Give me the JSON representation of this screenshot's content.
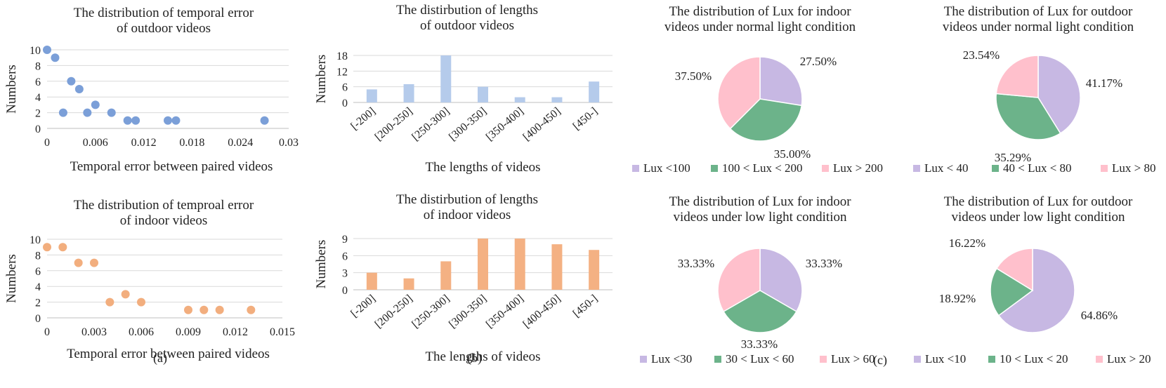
{
  "figure": {
    "captions": [
      "(a)",
      "(b)",
      "(c)"
    ]
  },
  "colors": {
    "scatter_outdoor": "#7b9fd8",
    "scatter_indoor": "#f2ae7e",
    "bar_outdoor": "#b5cbeb",
    "bar_indoor": "#f4b183",
    "pie": [
      "#c7b8e3",
      "#6cb38a",
      "#ffc0cc"
    ],
    "grid": "#d9d9d9",
    "axis": "#bfbfbf"
  },
  "chart_data": [
    {
      "id": "scatter-outdoor",
      "type": "scatter",
      "title": [
        "The distribution of temporal error",
        "of outdoor videos"
      ],
      "xlabel": "Temporal error between paired videos",
      "ylabel": "Numbers",
      "xlim": [
        0,
        0.03
      ],
      "ylim": [
        0,
        10
      ],
      "xticks": [
        "0",
        "0.006",
        "0.012",
        "0.018",
        "0.024",
        "0.03"
      ],
      "yticks": [
        "0",
        "2",
        "4",
        "6",
        "8",
        "10"
      ],
      "grid": true,
      "points": [
        [
          0,
          10
        ],
        [
          0.001,
          9
        ],
        [
          0.002,
          2
        ],
        [
          0.003,
          6
        ],
        [
          0.004,
          5
        ],
        [
          0.005,
          2
        ],
        [
          0.006,
          3
        ],
        [
          0.008,
          2
        ],
        [
          0.01,
          1
        ],
        [
          0.011,
          1
        ],
        [
          0.015,
          1
        ],
        [
          0.016,
          1
        ],
        [
          0.027,
          1
        ]
      ]
    },
    {
      "id": "scatter-indoor",
      "type": "scatter",
      "title": [
        "The distribution of temproal error",
        "of indoor videos"
      ],
      "xlabel": "Temporal error between paired videos",
      "ylabel": "Numbers",
      "xlim": [
        0,
        0.015
      ],
      "ylim": [
        0,
        10
      ],
      "xticks": [
        "0",
        "0.003",
        "0.006",
        "0.009",
        "0.012",
        "0.015"
      ],
      "yticks": [
        "0",
        "2",
        "4",
        "6",
        "8",
        "10"
      ],
      "grid": true,
      "points": [
        [
          0,
          9
        ],
        [
          0.001,
          9
        ],
        [
          0.002,
          7
        ],
        [
          0.003,
          7
        ],
        [
          0.004,
          2
        ],
        [
          0.005,
          3
        ],
        [
          0.006,
          2
        ],
        [
          0.009,
          1
        ],
        [
          0.01,
          1
        ],
        [
          0.011,
          1
        ],
        [
          0.013,
          1
        ]
      ]
    },
    {
      "id": "bar-outdoor",
      "type": "bar",
      "title": [
        "The distirbution of lengths",
        "of outdoor videos"
      ],
      "xlabel": "The lengths of videos",
      "ylabel": "Numbers",
      "ylim": [
        0,
        18
      ],
      "yticks": [
        "0",
        "6",
        "12",
        "18"
      ],
      "grid": true,
      "categories": [
        "[-200]",
        "[200-250]",
        "[250-300]",
        "[300-350]",
        "[350-400]",
        "[400-450]",
        "[450-]"
      ],
      "values": [
        5,
        7,
        18,
        6,
        2,
        2,
        8
      ]
    },
    {
      "id": "bar-indoor",
      "type": "bar",
      "title": [
        "The distirbution of lengths",
        "of indoor videos"
      ],
      "xlabel": "The lengths of videos",
      "ylabel": "Numbers",
      "ylim": [
        0,
        9
      ],
      "yticks": [
        "0",
        "3",
        "6",
        "9"
      ],
      "grid": true,
      "categories": [
        "[-200]",
        "[200-250]",
        "[250-300]",
        "[300-350]",
        "[350-400]",
        "[400-450]",
        "[450-]"
      ],
      "values": [
        3,
        2,
        5,
        9,
        9,
        8,
        7
      ]
    },
    {
      "id": "pie-indoor-normal",
      "type": "pie",
      "title": [
        "The distribution of Lux for indoor",
        "videos under normal light condition"
      ],
      "legend_position": "bottom",
      "slices": [
        {
          "name": "Lux <100",
          "value": 27.5,
          "label": "27.50%"
        },
        {
          "name": "100 < Lux < 200",
          "value": 35.0,
          "label": "35.00%"
        },
        {
          "name": "Lux > 200",
          "value": 37.5,
          "label": "37.50%"
        }
      ]
    },
    {
      "id": "pie-outdoor-normal",
      "type": "pie",
      "title": [
        "The distribution of Lux for outdoor",
        "videos under normal light condition"
      ],
      "legend_position": "bottom",
      "slices": [
        {
          "name": "Lux < 40",
          "value": 41.17,
          "label": "41.17%"
        },
        {
          "name": "40 < Lux < 80",
          "value": 35.29,
          "label": "35.29%"
        },
        {
          "name": "Lux > 80",
          "value": 23.54,
          "label": "23.54%"
        }
      ]
    },
    {
      "id": "pie-indoor-low",
      "type": "pie",
      "title": [
        "The distribution of Lux for indoor",
        "videos under low light condition"
      ],
      "legend_position": "bottom",
      "slices": [
        {
          "name": "Lux <30",
          "value": 33.33,
          "label": "33.33%"
        },
        {
          "name": "30 < Lux < 60",
          "value": 33.33,
          "label": "33.33%"
        },
        {
          "name": "Lux > 60",
          "value": 33.33,
          "label": "33.33%"
        }
      ]
    },
    {
      "id": "pie-outdoor-low",
      "type": "pie",
      "title": [
        "The distribution of Lux for outdoor",
        "videos under low light condition"
      ],
      "legend_position": "bottom",
      "slices": [
        {
          "name": "Lux <10",
          "value": 64.86,
          "label": "64.86%"
        },
        {
          "name": "10 < Lux < 20",
          "value": 18.92,
          "label": "18.92%"
        },
        {
          "name": "Lux > 20",
          "value": 16.22,
          "label": "16.22%"
        }
      ]
    }
  ]
}
